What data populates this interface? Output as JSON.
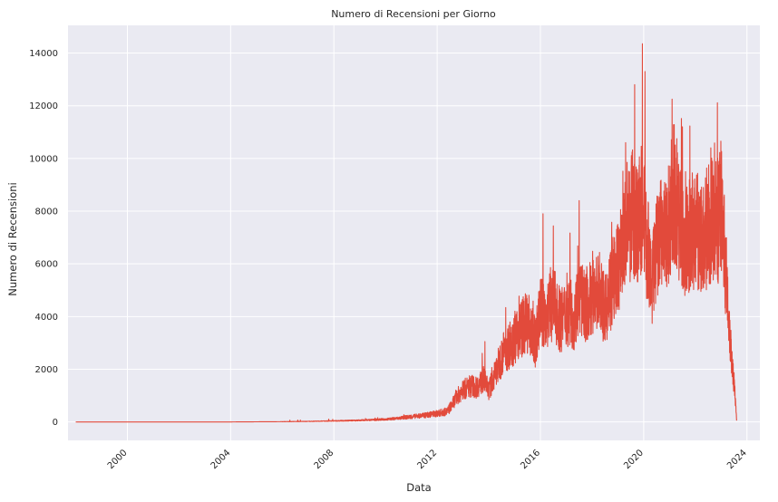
{
  "chart_data": {
    "type": "line",
    "title": "Numero di Recensioni per Giorno",
    "xlabel": "Data",
    "ylabel": "Numero di Recensioni",
    "x_tick_labels": [
      "2000",
      "2004",
      "2008",
      "2012",
      "2016",
      "2020",
      "2024"
    ],
    "x_tick_values": [
      2000,
      2004,
      2008,
      2012,
      2016,
      2020,
      2024
    ],
    "y_tick_labels": [
      "0",
      "2000",
      "4000",
      "6000",
      "8000",
      "10000",
      "12000",
      "14000"
    ],
    "y_tick_values": [
      0,
      2000,
      4000,
      6000,
      8000,
      10000,
      12000,
      14000
    ],
    "xlim": [
      1997.7,
      2024.5
    ],
    "ylim": [
      -700,
      15050
    ],
    "grid": true,
    "series": [
      {
        "color": "#e24a3b",
        "x": [
          1998.0,
          2004.0,
          2006.0,
          2007.0,
          2008.0,
          2009.0,
          2010.0,
          2010.5,
          2011.0,
          2011.5,
          2012.0,
          2012.4,
          2012.6,
          2012.8,
          2013.0,
          2013.3,
          2013.5,
          2013.7,
          2013.8,
          2014.0,
          2014.2,
          2014.5,
          2014.7,
          2015.0,
          2015.2,
          2015.5,
          2015.8,
          2016.0,
          2016.2,
          2016.5,
          2016.8,
          2017.0,
          2017.3,
          2017.5,
          2017.7,
          2018.0,
          2018.2,
          2018.5,
          2018.8,
          2019.0,
          2019.2,
          2019.4,
          2019.6,
          2019.8,
          2020.0,
          2020.1,
          2020.3,
          2020.5,
          2020.7,
          2020.9,
          2021.0,
          2021.2,
          2021.4,
          2021.6,
          2021.8,
          2022.0,
          2022.2,
          2022.5,
          2022.7,
          2022.9,
          2023.0,
          2023.1,
          2023.2,
          2023.3,
          2023.4,
          2023.5,
          2023.6
        ],
        "y": [
          0,
          0,
          10,
          20,
          40,
          60,
          100,
          140,
          200,
          250,
          320,
          400,
          700,
          1000,
          1200,
          1400,
          1300,
          1500,
          1600,
          1200,
          1700,
          2500,
          2800,
          3200,
          3500,
          3800,
          3000,
          4200,
          4000,
          4500,
          3800,
          4200,
          4000,
          4800,
          4400,
          4700,
          5000,
          4200,
          5200,
          5800,
          6800,
          7200,
          8000,
          7500,
          8500,
          6500,
          5200,
          6500,
          7200,
          6800,
          8000,
          8800,
          7600,
          6500,
          7200,
          7200,
          6800,
          7500,
          7800,
          7600,
          8200,
          7000,
          5500,
          4000,
          2500,
          1500,
          50
        ]
      }
    ],
    "annotated_peaks": [
      {
        "x": 2013.85,
        "y": 3050
      },
      {
        "x": 2016.1,
        "y": 7900
      },
      {
        "x": 2017.5,
        "y": 8400
      },
      {
        "x": 2019.3,
        "y": 10600
      },
      {
        "x": 2019.65,
        "y": 12800
      },
      {
        "x": 2019.95,
        "y": 14350
      },
      {
        "x": 2020.05,
        "y": 13300
      },
      {
        "x": 2021.1,
        "y": 12250
      },
      {
        "x": 2021.5,
        "y": 11200
      },
      {
        "x": 2022.6,
        "y": 10400
      }
    ]
  }
}
